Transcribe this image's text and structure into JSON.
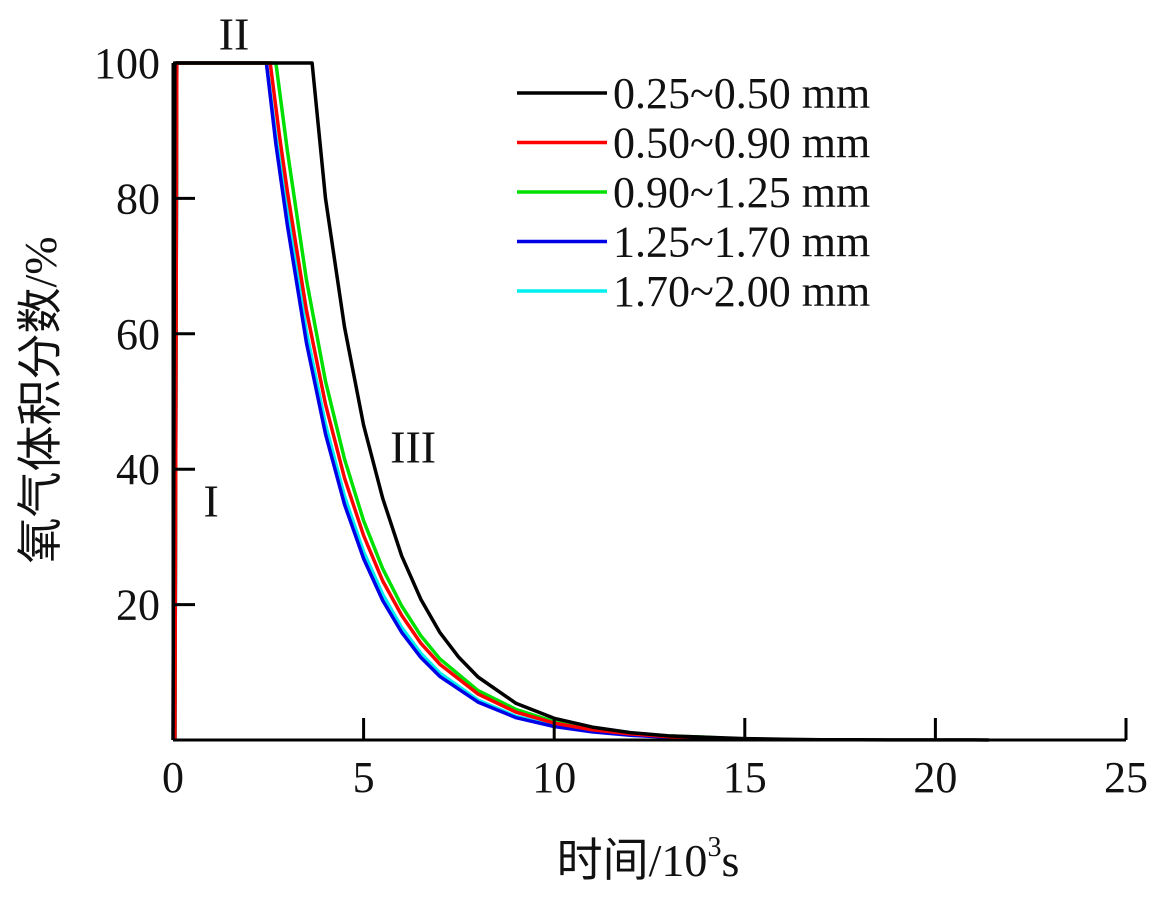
{
  "chart_data": {
    "type": "line",
    "title": "",
    "xlabel": "时间/10",
    "xlabel_sup": "3",
    "xlabel_tail": "s",
    "ylabel": "氧气体积分数/%",
    "xlim": [
      0,
      25
    ],
    "ylim": [
      0,
      100
    ],
    "xticks": [
      0,
      5,
      10,
      15,
      20,
      25
    ],
    "yticks": [
      20,
      40,
      60,
      80,
      100
    ],
    "xtick_labels": [
      "0",
      "5",
      "10",
      "15",
      "20",
      "25"
    ],
    "ytick_labels": [
      "20",
      "40",
      "60",
      "80",
      "100"
    ],
    "grid": false,
    "legend_position": "top-right",
    "annotations": [
      {
        "text": "I",
        "x": 1.0,
        "y": 33
      },
      {
        "text": "II",
        "x": 1.6,
        "y": 102
      },
      {
        "text": "III",
        "x": 6.3,
        "y": 41
      }
    ],
    "series": [
      {
        "name": "0.25~0.50 mm",
        "color": "#000000",
        "x": [
          0,
          0.02,
          0.05,
          3.65,
          4.0,
          4.5,
          5.0,
          5.5,
          6.0,
          6.5,
          7.0,
          7.5,
          8.0,
          9.0,
          10.0,
          11.0,
          12.0,
          13.0,
          14.0,
          15.0,
          16.0,
          17.0,
          18.0,
          19.0,
          20.0,
          21.0,
          21.4
        ],
        "y": [
          0,
          40,
          100,
          100,
          80,
          61,
          46.5,
          35.7,
          27.2,
          20.8,
          15.9,
          12.2,
          9.3,
          5.4,
          3.2,
          1.9,
          1.1,
          0.6,
          0.4,
          0.2,
          0.1,
          0.05,
          0.03,
          0.02,
          0.01,
          0.01,
          0.0
        ]
      },
      {
        "name": "0.50~0.90 mm",
        "color": "#ff0000",
        "x": [
          0.05,
          0.07,
          0.1,
          2.55,
          2.8,
          3.0,
          3.5,
          4.0,
          4.5,
          5.0,
          5.5,
          6.0,
          6.5,
          7.0,
          8.0,
          9.0,
          10.0,
          11.0,
          12.0,
          13.0,
          14.0,
          15.0
        ],
        "y": [
          0,
          40,
          100,
          100,
          89,
          81,
          63.5,
          49.6,
          38.7,
          30.2,
          23.5,
          18.4,
          14.3,
          11.2,
          6.8,
          4.1,
          2.5,
          1.5,
          0.9,
          0.5,
          0.3,
          0.1
        ]
      },
      {
        "name": "0.90~1.25 mm",
        "color": "#00e000",
        "x": [
          0.05,
          0.07,
          0.1,
          2.7,
          3.0,
          3.5,
          4.0,
          4.5,
          5.0,
          5.5,
          6.0,
          6.5,
          7.0,
          8.0,
          9.0,
          10.0,
          11.0,
          12.0,
          13.0,
          14.0,
          15.0
        ],
        "y": [
          0,
          40,
          100,
          100,
          87,
          68,
          53,
          41.5,
          32.4,
          25.3,
          19.8,
          15.4,
          12.0,
          7.3,
          4.5,
          2.7,
          1.6,
          1.0,
          0.6,
          0.4,
          0.1
        ]
      },
      {
        "name": "1.25~1.70 mm",
        "color": "#0000e6",
        "x": [
          0.05,
          0.07,
          0.1,
          2.45,
          2.7,
          3.0,
          3.5,
          4.0,
          4.5,
          5.0,
          5.5,
          6.0,
          6.5,
          7.0,
          8.0,
          9.0,
          10.0,
          11.0,
          12.0,
          13.0,
          14.0,
          15.0
        ],
        "y": [
          0,
          40,
          100,
          100,
          88,
          76,
          58.7,
          45.2,
          34.8,
          26.8,
          20.6,
          15.9,
          12.2,
          9.4,
          5.6,
          3.3,
          2.0,
          1.2,
          0.7,
          0.4,
          0.2,
          0.1
        ]
      },
      {
        "name": "1.70~2.00 mm",
        "color": "#00f0f0",
        "x": [
          0.05,
          0.07,
          0.1,
          2.45,
          2.7,
          3.0,
          3.5,
          4.0,
          4.5,
          5.0,
          5.5,
          6.0,
          6.5,
          7.0,
          8.0,
          9.0,
          10.0,
          11.0,
          12.0,
          13.0,
          14.0,
          15.3
        ],
        "y": [
          0,
          40,
          100,
          100,
          89,
          78,
          60.3,
          46.6,
          36.0,
          27.8,
          21.5,
          16.6,
          12.8,
          9.9,
          5.9,
          3.5,
          2.1,
          1.3,
          0.8,
          0.5,
          0.3,
          0.1
        ]
      }
    ]
  }
}
